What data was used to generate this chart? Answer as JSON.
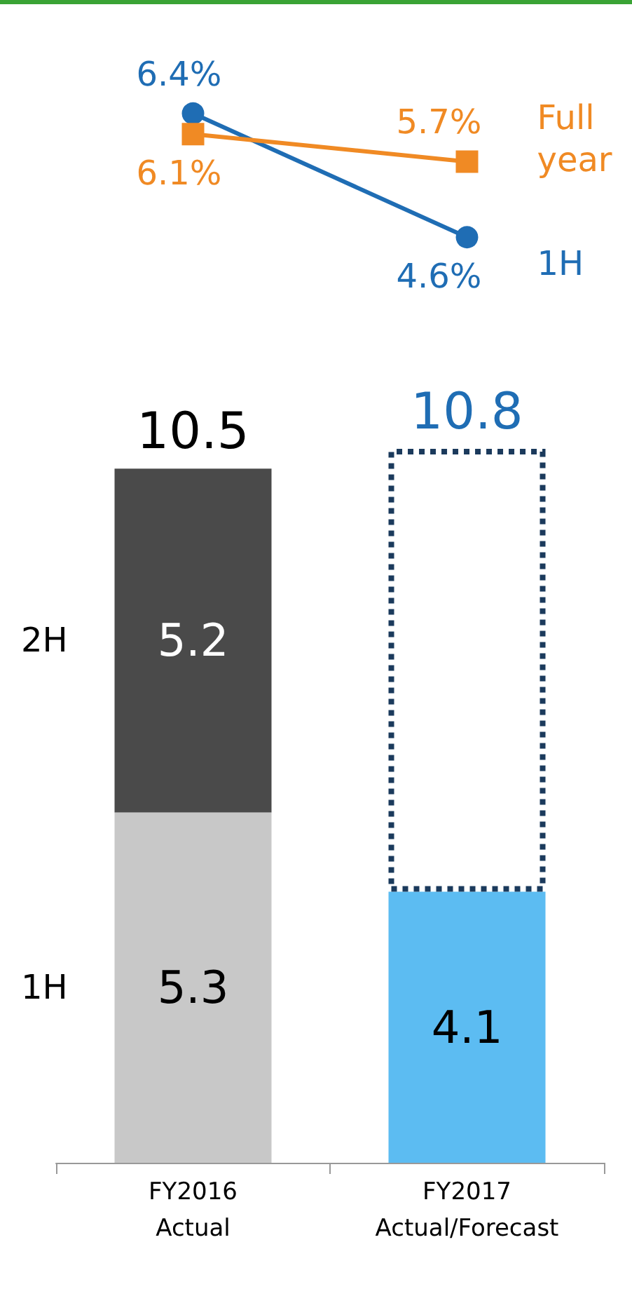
{
  "chart_data": [
    {
      "type": "line",
      "categories": [
        null,
        null
      ],
      "tick_labels": false,
      "legend": false,
      "series": [
        {
          "name": "1H",
          "color": "#1f6db4",
          "marker": "circle",
          "values": [
            6.4,
            4.6
          ],
          "value_labels": [
            "6.4%",
            "4.6%"
          ]
        },
        {
          "name": "Full\nyear",
          "color": "#f08a24",
          "marker": "square",
          "values": [
            6.1,
            5.7
          ],
          "value_labels": [
            "6.1%",
            "5.7%"
          ]
        }
      ]
    },
    {
      "type": "bar",
      "stacked": true,
      "categories": [
        "FY2016\nActual",
        "FY2017\nActual/Forecast"
      ],
      "legend": false,
      "totals": [
        "10.5",
        "10.8"
      ],
      "series": [
        {
          "name": "1H",
          "colors": [
            "#c8c8c8",
            "#5cbcf2"
          ],
          "values": [
            5.3,
            4.1
          ],
          "value_labels": [
            "5.3",
            "4.1"
          ]
        },
        {
          "name": "2H",
          "colors": [
            "#4a4a4a",
            "#ffffff"
          ],
          "values": [
            5.2,
            6.7
          ],
          "value_labels": [
            "5.2",
            null
          ]
        }
      ]
    }
  ]
}
